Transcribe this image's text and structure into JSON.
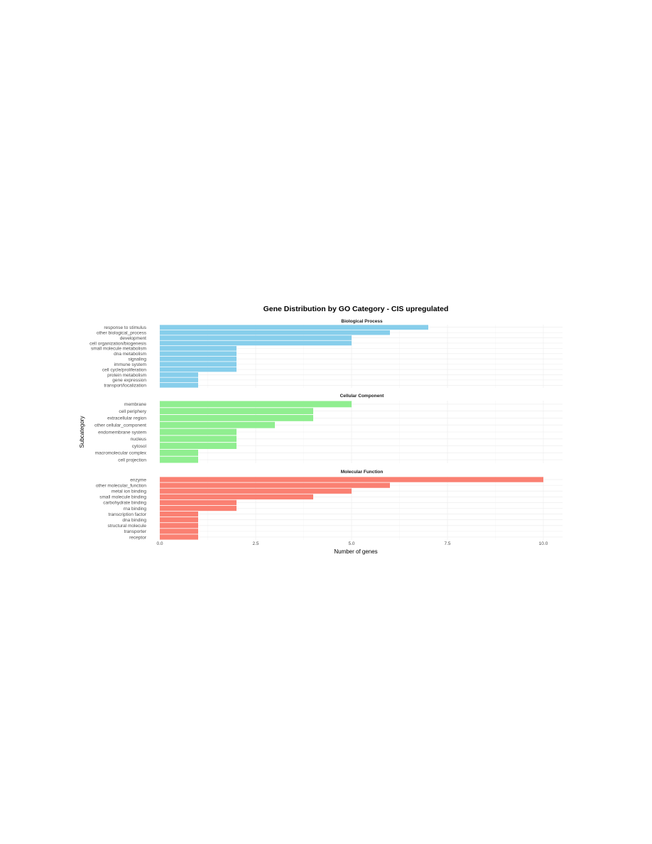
{
  "chart_data": {
    "type": "bar",
    "orientation": "horizontal",
    "title": "Gene Distribution by GO Category - CIS upregulated",
    "xlabel": "Number of genes",
    "ylabel": "Subcategory",
    "xlim": [
      0,
      10.5
    ],
    "xticks": [
      0,
      2.5,
      5,
      7.5,
      10
    ],
    "xtick_labels": [
      "0.0",
      "2.5",
      "5.0",
      "7.5",
      "10.0"
    ],
    "grid": true,
    "facets": [
      {
        "name": "Biological Process",
        "color": "#87CEEB",
        "categories": [
          "response to stimulus",
          "other biological_process",
          "development",
          "cell organization/biogenesis",
          "small molecule metabolism",
          "dna metabolism",
          "signaling",
          "immune system",
          "cell cycle/proliferation",
          "protein metabolism",
          "gene expression",
          "transport/localization"
        ],
        "values": [
          7,
          6,
          5,
          5,
          2,
          2,
          2,
          2,
          2,
          1,
          1,
          1
        ]
      },
      {
        "name": "Cellular Component",
        "color": "#90EE90",
        "categories": [
          "membrane",
          "cell periphery",
          "extracellular region",
          "other cellular_component",
          "endomembrane system",
          "nucleus",
          "cytosol",
          "macromolecular complex",
          "cell projection"
        ],
        "values": [
          5,
          4,
          4,
          3,
          2,
          2,
          2,
          1,
          1
        ]
      },
      {
        "name": "Molecular Function",
        "color": "#FA8072",
        "categories": [
          "enzyme",
          "other molecular_function",
          "metal ion binding",
          "small molecule binding",
          "carbohydrate binding",
          "rna binding",
          "transcription factor",
          "dna binding",
          "structural molecule",
          "transporter",
          "receptor"
        ],
        "values": [
          10,
          6,
          5,
          4,
          2,
          2,
          1,
          1,
          1,
          1,
          1
        ]
      }
    ]
  }
}
